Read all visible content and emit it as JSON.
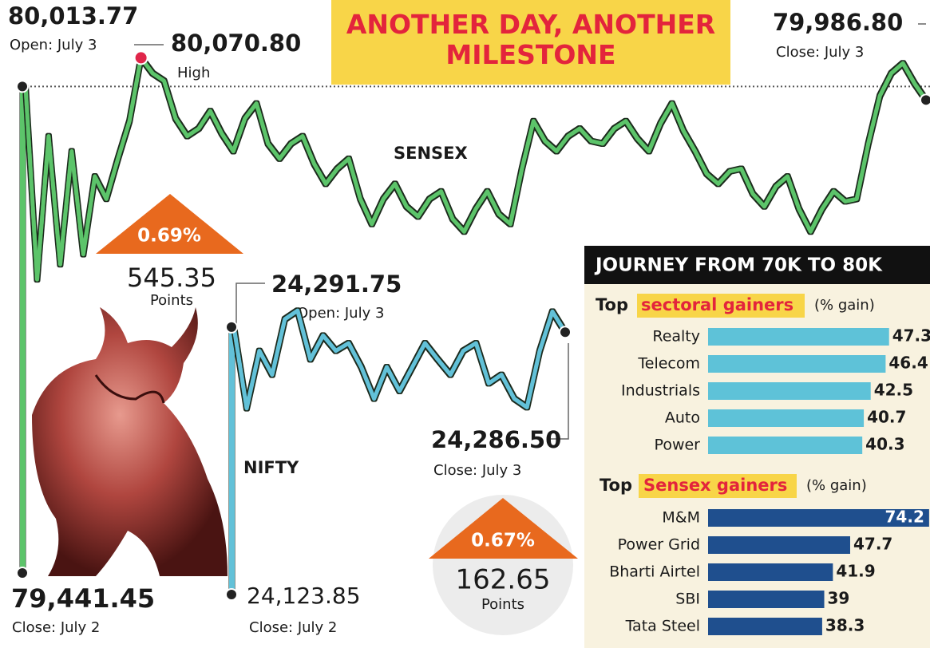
{
  "title": "ANOTHER DAY, ANOTHER MILESTONE",
  "panel_title": "JOURNEY FROM 70K TO 80K",
  "chart_data": [
    {
      "type": "line",
      "name": "SENSEX",
      "color": "#5cc46a",
      "ylim": [
        79600,
        80100
      ],
      "values": [
        80013.77,
        79630,
        79915,
        79660,
        79885,
        79680,
        79835,
        79790,
        79870,
        79945,
        80070.8,
        80040,
        80025,
        79950,
        79915,
        79930,
        79965,
        79920,
        79885,
        79950,
        79980,
        79900,
        79870,
        79900,
        79915,
        79860,
        79820,
        79850,
        79870,
        79790,
        79740,
        79790,
        79820,
        79775,
        79755,
        79790,
        79805,
        79750,
        79725,
        79770,
        79805,
        79760,
        79740,
        79850,
        79945,
        79905,
        79885,
        79915,
        79930,
        79905,
        79900,
        79930,
        79945,
        79910,
        79885,
        79940,
        79980,
        79925,
        79885,
        79840,
        79820,
        79845,
        79850,
        79800,
        79775,
        79815,
        79835,
        79770,
        79725,
        79770,
        79805,
        79785,
        79790,
        79900,
        79995,
        80040,
        80060,
        80020,
        79986.8
      ],
      "open": {
        "value": 80013.77,
        "label": "80,013.77",
        "caption": "Open: July 3"
      },
      "high": {
        "value": 80070.8,
        "label": "80,070.80",
        "caption": "High"
      },
      "close": {
        "value": 79986.8,
        "label": "79,986.80",
        "caption": "Close: July 3"
      },
      "prev_close": {
        "value": 79441.45,
        "label": "79,441.45",
        "caption": "Close: July 2"
      },
      "change": {
        "value": 0.69,
        "label": "0.69%"
      },
      "points": 545.35,
      "points_label": "Points"
    },
    {
      "type": "line",
      "name": "NIFTY",
      "color": "#62c1d8",
      "ylim": [
        24180,
        24325
      ],
      "values": [
        24291.75,
        24207,
        24267,
        24242,
        24300,
        24309,
        24258,
        24283,
        24267,
        24275,
        24250,
        24217,
        24250,
        24225,
        24250,
        24275,
        24258,
        24242,
        24267,
        24275,
        24233,
        24242,
        24217,
        24208,
        24267,
        24308,
        24286.5
      ],
      "open": {
        "value": 24291.75,
        "label": "24,291.75",
        "caption": "Open: July 3"
      },
      "close": {
        "value": 24286.5,
        "label": "24,286.50",
        "caption": "Close: July 3"
      },
      "prev_close": {
        "value": 24123.85,
        "label": "24,123.85",
        "caption": "Close: July 2"
      },
      "change": {
        "value": 0.67,
        "label": "0.67%"
      },
      "points": 162.65,
      "points_label": "Points"
    },
    {
      "type": "barh",
      "title_prefix": "Top",
      "title": "sectoral gainers",
      "unit": "(% gain)",
      "color": "#5ec2d8",
      "categories": [
        "Realty",
        "Telecom",
        "Industrials",
        "Auto",
        "Power"
      ],
      "values": [
        47.3,
        46.4,
        42.5,
        40.7,
        40.3
      ],
      "xlim": [
        0,
        58
      ]
    },
    {
      "type": "barh",
      "title_prefix": "Top",
      "title": "Sensex gainers",
      "unit": "(% gain)",
      "color": "#1f4f8e",
      "categories": [
        "M&M",
        "Power Grid",
        "Bharti Airtel",
        "SBI",
        "Tata Steel"
      ],
      "values": [
        74.2,
        47.7,
        41.9,
        39,
        38.3
      ],
      "xlim": [
        0,
        74.5
      ]
    }
  ]
}
